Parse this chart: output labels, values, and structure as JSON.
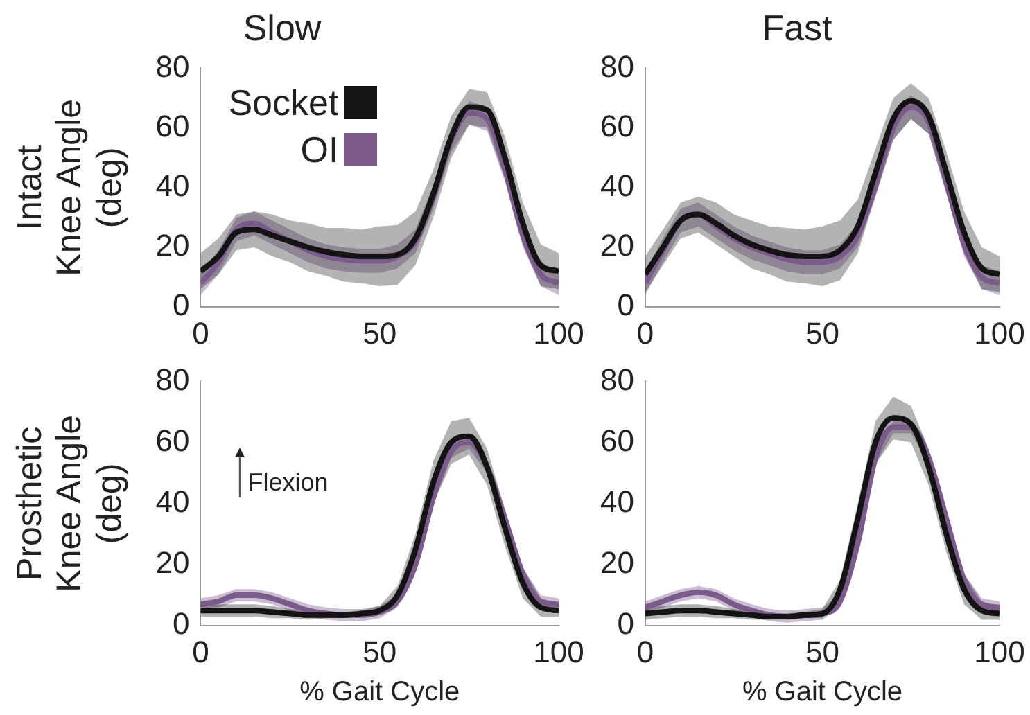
{
  "chart_data": [
    {
      "type": "line",
      "title": "Slow",
      "ylabel": "Intact Knee Angle (deg)",
      "x": [
        0,
        5,
        10,
        15,
        20,
        25,
        30,
        35,
        40,
        45,
        50,
        55,
        60,
        65,
        70,
        75,
        80,
        85,
        90,
        95,
        100
      ],
      "xlim": [
        0,
        100
      ],
      "xticks": [
        0,
        50,
        100
      ],
      "ylim": [
        0,
        80
      ],
      "yticks": [
        0,
        20,
        40,
        60,
        80
      ],
      "grid": false,
      "legend": "top left",
      "marker": "none",
      "line_style": "solid",
      "series": [
        {
          "name": "Socket",
          "color": "#141414",
          "values": [
            12,
            17,
            25,
            26,
            24,
            22,
            20,
            18.5,
            17.5,
            17,
            17,
            17.5,
            23,
            38,
            57,
            67,
            66,
            50,
            28,
            14,
            12
          ],
          "lower": [
            6,
            11,
            19,
            20,
            17,
            15,
            12,
            10.5,
            8.5,
            8,
            7,
            7.5,
            14,
            30,
            50,
            61,
            60,
            43,
            21,
            7,
            6
          ],
          "upper": [
            18,
            23,
            31,
            32,
            31,
            29,
            28,
            26.5,
            26.5,
            26,
            27,
            27.5,
            32,
            46,
            64,
            73,
            72,
            57,
            35,
            21,
            18
          ]
        },
        {
          "name": "OI",
          "color": "#7b5a8c",
          "values": [
            8,
            15,
            26,
            28,
            25,
            22,
            19,
            17,
            16,
            15.5,
            15.5,
            17,
            22,
            37,
            56,
            65,
            63,
            46,
            24,
            11,
            8
          ],
          "lower": [
            4,
            11,
            22,
            24,
            21,
            18,
            15,
            13,
            12,
            11.5,
            11.5,
            13,
            18,
            33,
            52,
            61,
            59,
            42,
            20,
            7,
            4
          ],
          "upper": [
            12,
            19,
            30,
            32,
            29,
            26,
            23,
            21,
            20,
            19.5,
            19.5,
            21,
            26,
            41,
            60,
            69,
            67,
            50,
            28,
            15,
            12
          ]
        }
      ]
    },
    {
      "type": "line",
      "title": "Fast",
      "x": [
        0,
        5,
        10,
        15,
        20,
        25,
        30,
        35,
        40,
        45,
        50,
        55,
        60,
        65,
        70,
        75,
        80,
        85,
        90,
        95,
        100
      ],
      "xlim": [
        0,
        100
      ],
      "xticks": [
        0,
        50,
        100
      ],
      "ylim": [
        0,
        80
      ],
      "yticks": [
        0,
        20,
        40,
        60,
        80
      ],
      "grid": false,
      "marker": "none",
      "line_style": "solid",
      "series": [
        {
          "color": "#141414",
          "values": [
            11,
            20,
            29,
            31,
            28,
            24,
            21,
            19,
            17.5,
            17,
            17,
            19,
            27,
            45,
            63,
            69,
            64,
            45,
            25,
            13,
            11
          ],
          "lower": [
            5,
            14,
            23,
            25,
            21,
            17,
            13,
            11,
            8.5,
            8,
            7,
            9,
            18,
            37,
            56,
            63,
            58,
            38,
            18,
            6,
            5
          ],
          "upper": [
            17,
            26,
            35,
            37,
            35,
            31,
            29,
            27,
            26.5,
            26,
            27,
            29,
            36,
            53,
            70,
            75,
            70,
            52,
            32,
            20,
            17
          ]
        },
        {
          "color": "#7b5a8c",
          "values": [
            8,
            19,
            29,
            31,
            27,
            23,
            20,
            18,
            16,
            15,
            15,
            17,
            24,
            41,
            60,
            67,
            62,
            42,
            21,
            10,
            8
          ],
          "lower": [
            4,
            15,
            25,
            27,
            23,
            19,
            16,
            14,
            12,
            11,
            11,
            13,
            20,
            37,
            56,
            63,
            58,
            38,
            17,
            6,
            4
          ],
          "upper": [
            12,
            23,
            33,
            35,
            31,
            27,
            24,
            22,
            20,
            19,
            19,
            21,
            28,
            45,
            64,
            71,
            66,
            46,
            25,
            14,
            12
          ]
        }
      ]
    },
    {
      "type": "line",
      "ylabel": "Prosthetic Knee Angle (deg)",
      "xlabel": "% Gait Cycle",
      "annotations": [
        "Flexion"
      ],
      "x": [
        0,
        5,
        10,
        15,
        20,
        25,
        30,
        35,
        40,
        45,
        50,
        55,
        60,
        65,
        70,
        75,
        80,
        85,
        90,
        95,
        100
      ],
      "xlim": [
        0,
        100
      ],
      "xticks": [
        0,
        50,
        100
      ],
      "ylim": [
        0,
        80
      ],
      "yticks": [
        0,
        20,
        40,
        60,
        80
      ],
      "grid": false,
      "marker": "none",
      "line_style": "solid",
      "series": [
        {
          "color": "#141414",
          "values": [
            5,
            5,
            5,
            5,
            4.5,
            4,
            3.5,
            3.5,
            3.5,
            4,
            5,
            10,
            25,
            47,
            60,
            62,
            52,
            32,
            14,
            6,
            5
          ],
          "lower": [
            3,
            3,
            3,
            3,
            2.5,
            2.5,
            2,
            2.5,
            2.5,
            3,
            3.5,
            7,
            20,
            40,
            53,
            56,
            46,
            26,
            9,
            3,
            3
          ],
          "upper": [
            7,
            7,
            7,
            7,
            6.5,
            5.5,
            5,
            4.5,
            4.5,
            5,
            6.5,
            13,
            30,
            54,
            67,
            68,
            58,
            38,
            19,
            9,
            7
          ]
        },
        {
          "color": "#7b5a8c",
          "values": [
            7,
            8,
            10,
            10,
            9,
            7,
            5,
            4,
            3.5,
            3.5,
            4.5,
            8,
            20,
            42,
            57,
            60,
            52,
            35,
            17,
            8,
            7
          ],
          "lower": [
            5,
            6,
            8,
            8,
            7,
            5,
            3,
            2,
            1.5,
            1.5,
            2.5,
            6,
            18,
            40,
            55,
            58,
            50,
            33,
            15,
            6,
            5
          ],
          "upper": [
            9,
            10,
            12,
            12,
            11,
            9,
            7,
            6,
            5.5,
            5.5,
            6.5,
            10,
            22,
            44,
            59,
            62,
            54,
            37,
            19,
            10,
            9
          ]
        }
      ]
    },
    {
      "type": "line",
      "xlabel": "% Gait Cycle",
      "x": [
        0,
        5,
        10,
        15,
        20,
        25,
        30,
        35,
        40,
        45,
        50,
        55,
        60,
        65,
        70,
        75,
        80,
        85,
        90,
        95,
        100
      ],
      "xlim": [
        0,
        100
      ],
      "xticks": [
        0,
        50,
        100
      ],
      "ylim": [
        0,
        80
      ],
      "yticks": [
        0,
        20,
        40,
        60,
        80
      ],
      "grid": false,
      "marker": "none",
      "line_style": "solid",
      "series": [
        {
          "color": "#141414",
          "values": [
            4,
            4.5,
            5,
            5,
            4.5,
            4,
            3.5,
            3,
            3,
            3.5,
            4,
            12,
            35,
            60,
            68,
            66,
            52,
            30,
            12,
            5,
            4
          ],
          "lower": [
            2,
            2.5,
            3,
            3,
            2.5,
            2.5,
            2,
            2,
            2,
            2.5,
            2.5,
            9,
            30,
            53,
            61,
            60,
            46,
            24,
            7,
            2,
            2
          ],
          "upper": [
            6,
            6.5,
            7,
            7,
            6.5,
            5.5,
            5,
            4,
            4,
            4.5,
            5.5,
            15,
            40,
            67,
            75,
            72,
            58,
            36,
            17,
            8,
            6
          ]
        },
        {
          "color": "#7b5a8c",
          "values": [
            6,
            8,
            10,
            11,
            10,
            7,
            5,
            3.5,
            3,
            3.5,
            4,
            8,
            27,
            55,
            65,
            65,
            55,
            35,
            15,
            7,
            6
          ],
          "lower": [
            4,
            6,
            8,
            9,
            8,
            5,
            3,
            1.5,
            1,
            1.5,
            2,
            6,
            25,
            53,
            63,
            63,
            53,
            33,
            13,
            5,
            4
          ],
          "upper": [
            8,
            10,
            12,
            13,
            12,
            9,
            7,
            5.5,
            5,
            5.5,
            6,
            10,
            29,
            57,
            67,
            67,
            57,
            37,
            17,
            9,
            8
          ]
        }
      ]
    }
  ]
}
